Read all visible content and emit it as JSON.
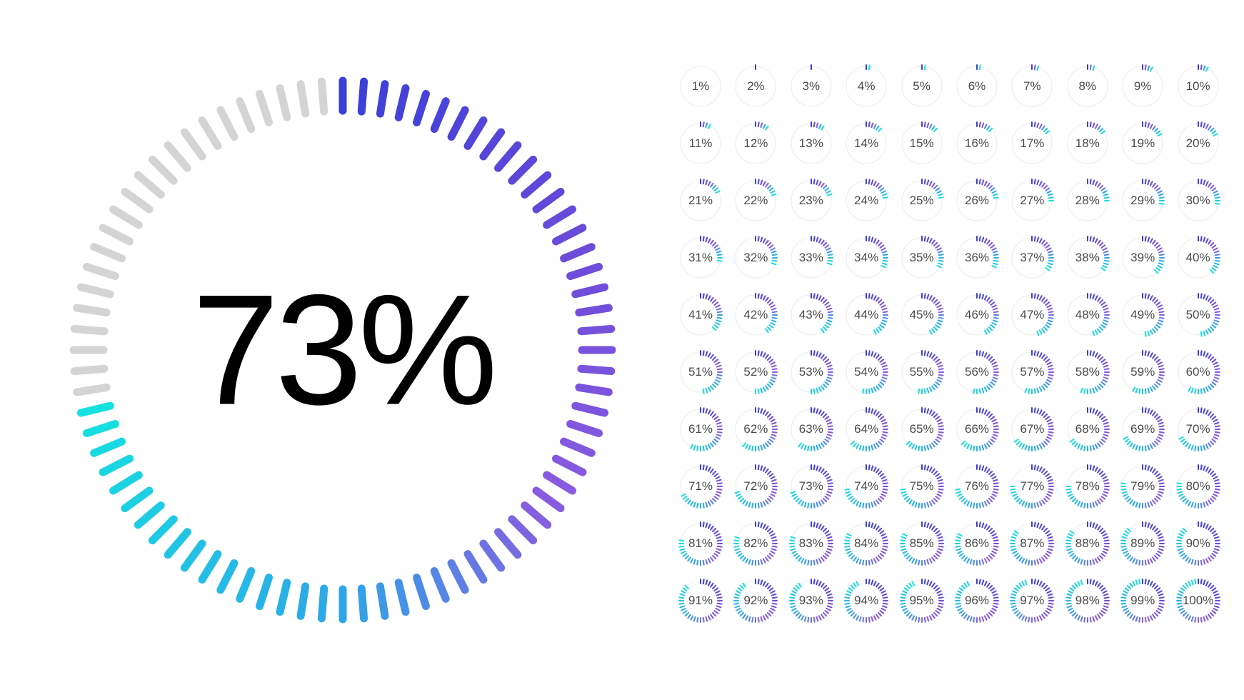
{
  "main": {
    "percent": 73,
    "label": "73%",
    "tick_count": 80,
    "tick_length": 42,
    "tick_width": 11,
    "tick_radius_inner": 335,
    "size": 800,
    "inactive_color": "#d4d4d4",
    "gradient_stops": [
      {
        "at": 0.0,
        "color": "#3a3fd9"
      },
      {
        "at": 0.25,
        "color": "#6a4bd9"
      },
      {
        "at": 0.5,
        "color": "#8a5ce0"
      },
      {
        "at": 0.7,
        "color": "#2ea5e8"
      },
      {
        "at": 1.0,
        "color": "#15e0e0"
      }
    ],
    "label_fontsize": 220,
    "label_color": "#000000"
  },
  "grid": {
    "cols": 10,
    "rows": 10,
    "cell_size": 62,
    "tick_count": 40,
    "tick_length": 6,
    "tick_width": 2,
    "tick_radius_inner": 24,
    "track_color": "#e8e8e8",
    "track_width": 0.8,
    "track_radius": 28,
    "label_fontsize": 17,
    "label_color": "#4a4a4a",
    "gradient_stops": [
      {
        "at": 0.0,
        "color": "#3a3fd9"
      },
      {
        "at": 0.25,
        "color": "#6a4bd9"
      },
      {
        "at": 0.5,
        "color": "#8a5ce0"
      },
      {
        "at": 0.7,
        "color": "#2ea5e8"
      },
      {
        "at": 1.0,
        "color": "#15e0e0"
      }
    ],
    "items": [
      {
        "p": 1,
        "l": "1%"
      },
      {
        "p": 2,
        "l": "2%"
      },
      {
        "p": 3,
        "l": "3%"
      },
      {
        "p": 4,
        "l": "4%"
      },
      {
        "p": 5,
        "l": "5%"
      },
      {
        "p": 6,
        "l": "6%"
      },
      {
        "p": 7,
        "l": "7%"
      },
      {
        "p": 8,
        "l": "8%"
      },
      {
        "p": 9,
        "l": "9%"
      },
      {
        "p": 10,
        "l": "10%"
      },
      {
        "p": 11,
        "l": "11%"
      },
      {
        "p": 12,
        "l": "12%"
      },
      {
        "p": 13,
        "l": "13%"
      },
      {
        "p": 14,
        "l": "14%"
      },
      {
        "p": 15,
        "l": "15%"
      },
      {
        "p": 16,
        "l": "16%"
      },
      {
        "p": 17,
        "l": "17%"
      },
      {
        "p": 18,
        "l": "18%"
      },
      {
        "p": 19,
        "l": "19%"
      },
      {
        "p": 20,
        "l": "20%"
      },
      {
        "p": 21,
        "l": "21%"
      },
      {
        "p": 22,
        "l": "22%"
      },
      {
        "p": 23,
        "l": "23%"
      },
      {
        "p": 24,
        "l": "24%"
      },
      {
        "p": 25,
        "l": "25%"
      },
      {
        "p": 26,
        "l": "26%"
      },
      {
        "p": 27,
        "l": "27%"
      },
      {
        "p": 28,
        "l": "28%"
      },
      {
        "p": 29,
        "l": "29%"
      },
      {
        "p": 30,
        "l": "30%"
      },
      {
        "p": 31,
        "l": "31%"
      },
      {
        "p": 32,
        "l": "32%"
      },
      {
        "p": 33,
        "l": "33%"
      },
      {
        "p": 34,
        "l": "34%"
      },
      {
        "p": 35,
        "l": "35%"
      },
      {
        "p": 36,
        "l": "36%"
      },
      {
        "p": 37,
        "l": "37%"
      },
      {
        "p": 38,
        "l": "38%"
      },
      {
        "p": 39,
        "l": "39%"
      },
      {
        "p": 40,
        "l": "40%"
      },
      {
        "p": 41,
        "l": "41%"
      },
      {
        "p": 42,
        "l": "42%"
      },
      {
        "p": 43,
        "l": "43%"
      },
      {
        "p": 44,
        "l": "44%"
      },
      {
        "p": 45,
        "l": "45%"
      },
      {
        "p": 46,
        "l": "46%"
      },
      {
        "p": 47,
        "l": "47%"
      },
      {
        "p": 48,
        "l": "48%"
      },
      {
        "p": 49,
        "l": "49%"
      },
      {
        "p": 50,
        "l": "50%"
      },
      {
        "p": 51,
        "l": "51%"
      },
      {
        "p": 52,
        "l": "52%"
      },
      {
        "p": 53,
        "l": "53%"
      },
      {
        "p": 54,
        "l": "54%"
      },
      {
        "p": 55,
        "l": "55%"
      },
      {
        "p": 56,
        "l": "56%"
      },
      {
        "p": 57,
        "l": "57%"
      },
      {
        "p": 58,
        "l": "58%"
      },
      {
        "p": 59,
        "l": "59%"
      },
      {
        "p": 60,
        "l": "60%"
      },
      {
        "p": 61,
        "l": "61%"
      },
      {
        "p": 62,
        "l": "62%"
      },
      {
        "p": 63,
        "l": "63%"
      },
      {
        "p": 64,
        "l": "64%"
      },
      {
        "p": 65,
        "l": "65%"
      },
      {
        "p": 66,
        "l": "66%"
      },
      {
        "p": 67,
        "l": "67%"
      },
      {
        "p": 68,
        "l": "68%"
      },
      {
        "p": 69,
        "l": "69%"
      },
      {
        "p": 70,
        "l": "70%"
      },
      {
        "p": 71,
        "l": "71%"
      },
      {
        "p": 72,
        "l": "72%"
      },
      {
        "p": 73,
        "l": "73%"
      },
      {
        "p": 74,
        "l": "74%"
      },
      {
        "p": 75,
        "l": "75%"
      },
      {
        "p": 76,
        "l": "76%"
      },
      {
        "p": 77,
        "l": "77%"
      },
      {
        "p": 78,
        "l": "78%"
      },
      {
        "p": 79,
        "l": "79%"
      },
      {
        "p": 80,
        "l": "80%"
      },
      {
        "p": 81,
        "l": "81%"
      },
      {
        "p": 82,
        "l": "82%"
      },
      {
        "p": 83,
        "l": "83%"
      },
      {
        "p": 84,
        "l": "84%"
      },
      {
        "p": 85,
        "l": "85%"
      },
      {
        "p": 86,
        "l": "86%"
      },
      {
        "p": 87,
        "l": "87%"
      },
      {
        "p": 88,
        "l": "88%"
      },
      {
        "p": 89,
        "l": "89%"
      },
      {
        "p": 90,
        "l": "90%"
      },
      {
        "p": 91,
        "l": "91%"
      },
      {
        "p": 92,
        "l": "92%"
      },
      {
        "p": 93,
        "l": "93%"
      },
      {
        "p": 94,
        "l": "94%"
      },
      {
        "p": 95,
        "l": "95%"
      },
      {
        "p": 96,
        "l": "96%"
      },
      {
        "p": 97,
        "l": "97%"
      },
      {
        "p": 98,
        "l": "98%"
      },
      {
        "p": 99,
        "l": "99%"
      },
      {
        "p": 100,
        "l": "100%"
      }
    ]
  }
}
